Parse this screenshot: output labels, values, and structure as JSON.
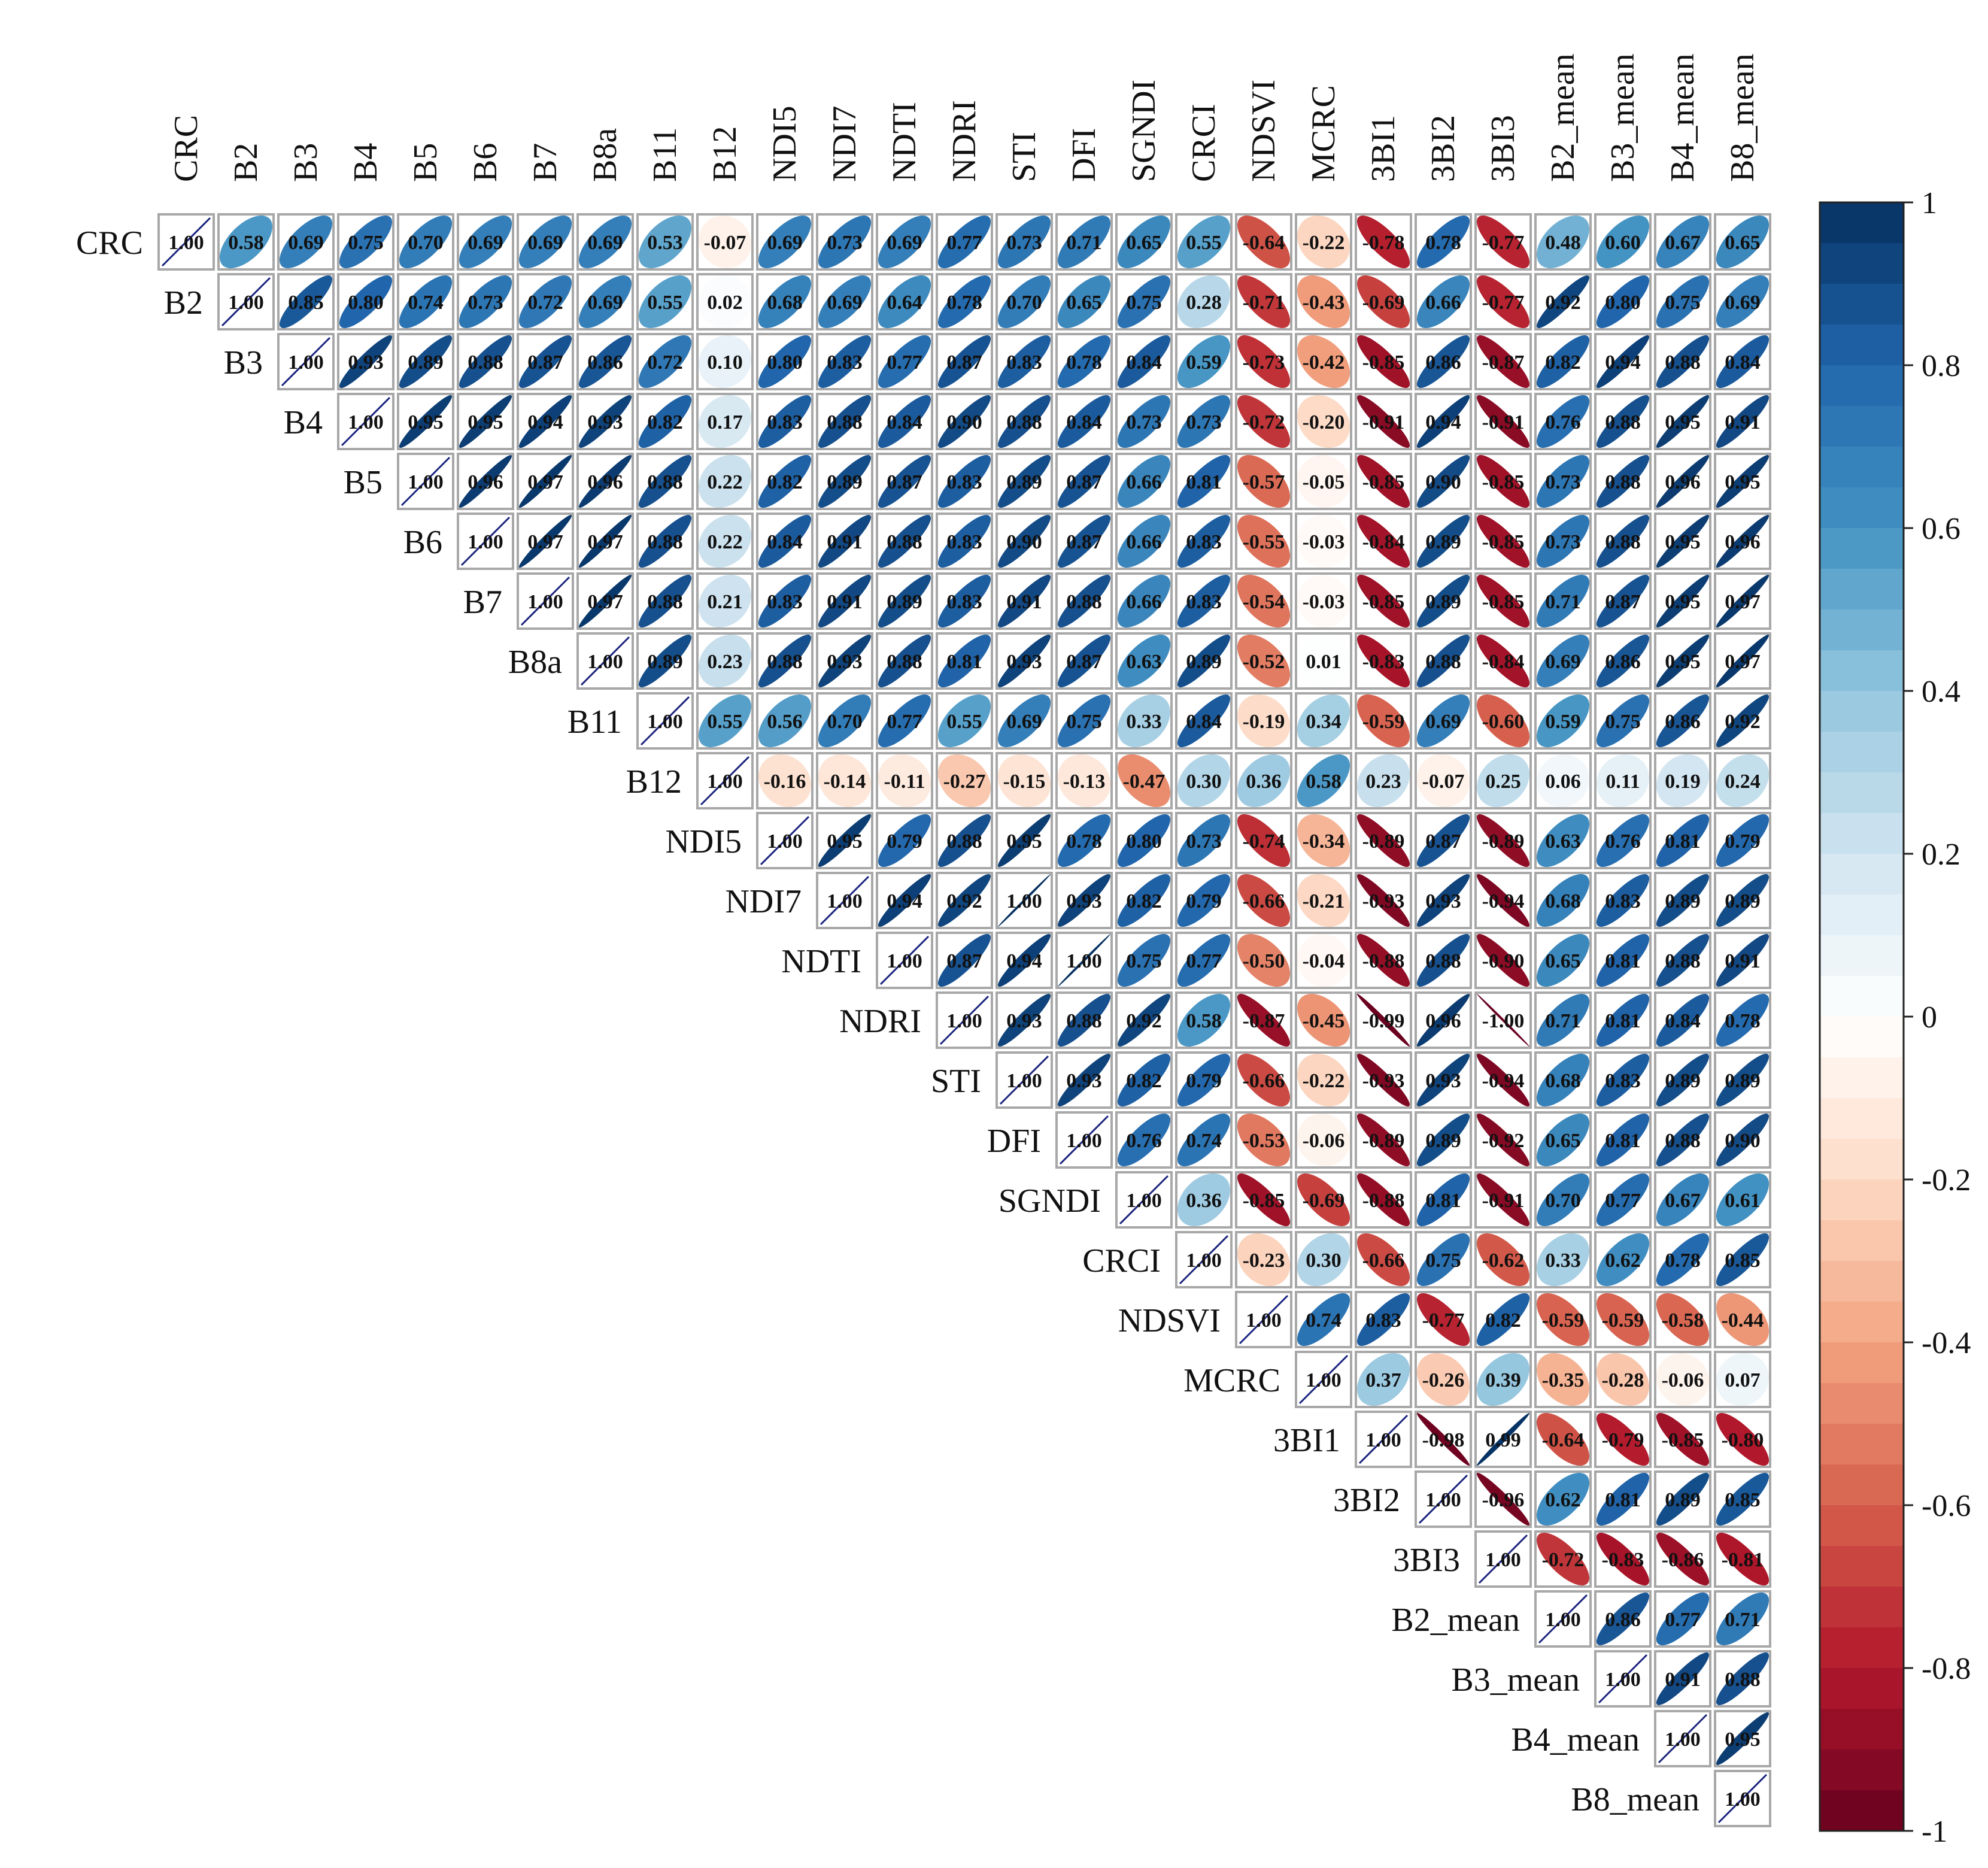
{
  "chart_data": {
    "type": "heatmap",
    "subtype": "correlation-upper-triangle-ellipse",
    "variables": [
      "CRC",
      "B2",
      "B3",
      "B4",
      "B5",
      "B6",
      "B7",
      "B8a",
      "B11",
      "B12",
      "NDI5",
      "NDI7",
      "NDTI",
      "NDRI",
      "STI",
      "DFI",
      "SGNDI",
      "CRCI",
      "NDSVI",
      "MCRC",
      "3BI1",
      "3BI2",
      "3BI3",
      "B2_mean",
      "B3_mean",
      "B4_mean",
      "B8_mean"
    ],
    "value_rows": [
      [
        "1.00",
        "0.58",
        "0.69",
        "0.75",
        "0.70",
        "0.69",
        "0.69",
        "0.69",
        "0.53",
        "-0.07",
        "0.69",
        "0.73",
        "0.69",
        "0.77",
        "0.73",
        "0.71",
        "0.65",
        "0.55",
        "-0.64",
        "-0.22",
        "-0.78",
        "0.78",
        "-0.77",
        "0.48",
        "0.60",
        "0.67",
        "0.65"
      ],
      [
        "1.00",
        "0.85",
        "0.80",
        "0.74",
        "0.73",
        "0.72",
        "0.69",
        "0.55",
        "0.02",
        "0.68",
        "0.69",
        "0.64",
        "0.78",
        "0.70",
        "0.65",
        "0.75",
        "0.28",
        "-0.71",
        "-0.43",
        "-0.69",
        "0.66",
        "-0.77",
        "0.92",
        "0.80",
        "0.75",
        "0.69"
      ],
      [
        "1.00",
        "0.93",
        "0.89",
        "0.88",
        "0.87",
        "0.86",
        "0.72",
        "0.10",
        "0.80",
        "0.83",
        "0.77",
        "0.87",
        "0.83",
        "0.78",
        "0.84",
        "0.59",
        "-0.73",
        "-0.42",
        "-0.85",
        "0.86",
        "-0.87",
        "0.82",
        "0.94",
        "0.88",
        "0.84"
      ],
      [
        "1.00",
        "0.95",
        "0.95",
        "0.94",
        "0.93",
        "0.82",
        "0.17",
        "0.83",
        "0.88",
        "0.84",
        "0.90",
        "0.88",
        "0.84",
        "0.73",
        "0.73",
        "-0.72",
        "-0.20",
        "-0.91",
        "0.94",
        "-0.91",
        "0.76",
        "0.88",
        "0.95",
        "0.91"
      ],
      [
        "1.00",
        "0.96",
        "0.97",
        "0.96",
        "0.88",
        "0.22",
        "0.82",
        "0.89",
        "0.87",
        "0.83",
        "0.89",
        "0.87",
        "0.66",
        "0.81",
        "-0.57",
        "-0.05",
        "-0.85",
        "0.90",
        "-0.85",
        "0.73",
        "0.88",
        "0.96",
        "0.95"
      ],
      [
        "1.00",
        "0.97",
        "0.97",
        "0.88",
        "0.22",
        "0.84",
        "0.91",
        "0.88",
        "0.83",
        "0.90",
        "0.87",
        "0.66",
        "0.83",
        "-0.55",
        "-0.03",
        "-0.84",
        "0.89",
        "-0.85",
        "0.73",
        "0.88",
        "0.95",
        "0.96"
      ],
      [
        "1.00",
        "0.97",
        "0.88",
        "0.21",
        "0.83",
        "0.91",
        "0.89",
        "0.83",
        "0.91",
        "0.88",
        "0.66",
        "0.83",
        "-0.54",
        "-0.03",
        "-0.85",
        "0.89",
        "-0.85",
        "0.71",
        "0.87",
        "0.95",
        "0.97"
      ],
      [
        "1.00",
        "0.89",
        "0.23",
        "0.88",
        "0.93",
        "0.88",
        "0.81",
        "0.93",
        "0.87",
        "0.63",
        "0.89",
        "-0.52",
        "0.01",
        "-0.83",
        "0.88",
        "-0.84",
        "0.69",
        "0.86",
        "0.95",
        "0.97"
      ],
      [
        "1.00",
        "0.55",
        "0.56",
        "0.70",
        "0.77",
        "0.55",
        "0.69",
        "0.75",
        "0.33",
        "0.84",
        "-0.19",
        "0.34",
        "-0.59",
        "0.69",
        "-0.60",
        "0.59",
        "0.75",
        "0.86",
        "0.92"
      ],
      [
        "1.00",
        "-0.16",
        "-0.14",
        "-0.11",
        "-0.27",
        "-0.15",
        "-0.13",
        "-0.47",
        "0.30",
        "0.36",
        "0.58",
        "0.23",
        "-0.07",
        "0.25",
        "0.06",
        "0.11",
        "0.19",
        "0.24"
      ],
      [
        "1.00",
        "0.95",
        "0.79",
        "0.88",
        "0.95",
        "0.78",
        "0.80",
        "0.73",
        "-0.74",
        "-0.34",
        "-0.89",
        "0.87",
        "-0.89",
        "0.63",
        "0.76",
        "0.81",
        "0.79"
      ],
      [
        "1.00",
        "0.94",
        "0.92",
        "1.00",
        "0.93",
        "0.82",
        "0.79",
        "-0.66",
        "-0.21",
        "-0.93",
        "0.93",
        "-0.94",
        "0.68",
        "0.83",
        "0.89",
        "0.89"
      ],
      [
        "1.00",
        "0.87",
        "0.94",
        "1.00",
        "0.75",
        "0.77",
        "-0.50",
        "-0.04",
        "-0.88",
        "0.88",
        "-0.90",
        "0.65",
        "0.81",
        "0.88",
        "0.91"
      ],
      [
        "1.00",
        "0.93",
        "0.88",
        "0.92",
        "0.58",
        "-0.87",
        "-0.45",
        "-0.99",
        "0.96",
        "-1.00",
        "0.71",
        "0.81",
        "0.84",
        "0.78"
      ],
      [
        "1.00",
        "0.93",
        "0.82",
        "0.79",
        "-0.66",
        "-0.22",
        "-0.93",
        "0.93",
        "-0.94",
        "0.68",
        "0.83",
        "0.89",
        "0.89"
      ],
      [
        "1.00",
        "0.76",
        "0.74",
        "-0.53",
        "-0.06",
        "-0.89",
        "0.89",
        "-0.92",
        "0.65",
        "0.81",
        "0.88",
        "0.90"
      ],
      [
        "1.00",
        "0.36",
        "-0.85",
        "-0.69",
        "-0.88",
        "0.81",
        "-0.91",
        "0.70",
        "0.77",
        "0.67",
        "0.61"
      ],
      [
        "1.00",
        "-0.23",
        "0.30",
        "-0.66",
        "0.75",
        "-0.62",
        "0.33",
        "0.62",
        "0.78",
        "0.85"
      ],
      [
        "1.00",
        "0.74",
        "0.83",
        "-0.77",
        "0.82",
        "-0.59",
        "-0.59",
        "-0.58",
        "-0.44"
      ],
      [
        "1.00",
        "0.37",
        "-0.26",
        "0.39",
        "-0.35",
        "-0.28",
        "-0.06",
        "0.07"
      ],
      [
        "1.00",
        "-0.98",
        "0.99",
        "-0.64",
        "-0.79",
        "-0.85",
        "-0.80"
      ],
      [
        "1.00",
        "-0.96",
        "0.62",
        "0.81",
        "0.89",
        "0.85"
      ],
      [
        "1.00",
        "-0.72",
        "-0.83",
        "-0.86",
        "-0.81"
      ],
      [
        "1.00",
        "0.86",
        "0.77",
        "0.71"
      ],
      [
        "1.00",
        "0.91",
        "0.88"
      ],
      [
        "1.00",
        "0.95"
      ],
      [
        "1.00"
      ]
    ],
    "colorbar": {
      "range": [
        -1,
        1
      ],
      "ticks": [
        "1",
        "0.8",
        "0.6",
        "0.4",
        "0.2",
        "0",
        "-0.2",
        "-0.4",
        "-0.6",
        "-0.8",
        "-1"
      ],
      "colors": [
        "#67001f",
        "#b2182b",
        "#d6604d",
        "#f4a582",
        "#fddbc7",
        "#ffffff",
        "#d1e5f0",
        "#92c5de",
        "#4393c3",
        "#2166ac",
        "#053061"
      ]
    }
  }
}
